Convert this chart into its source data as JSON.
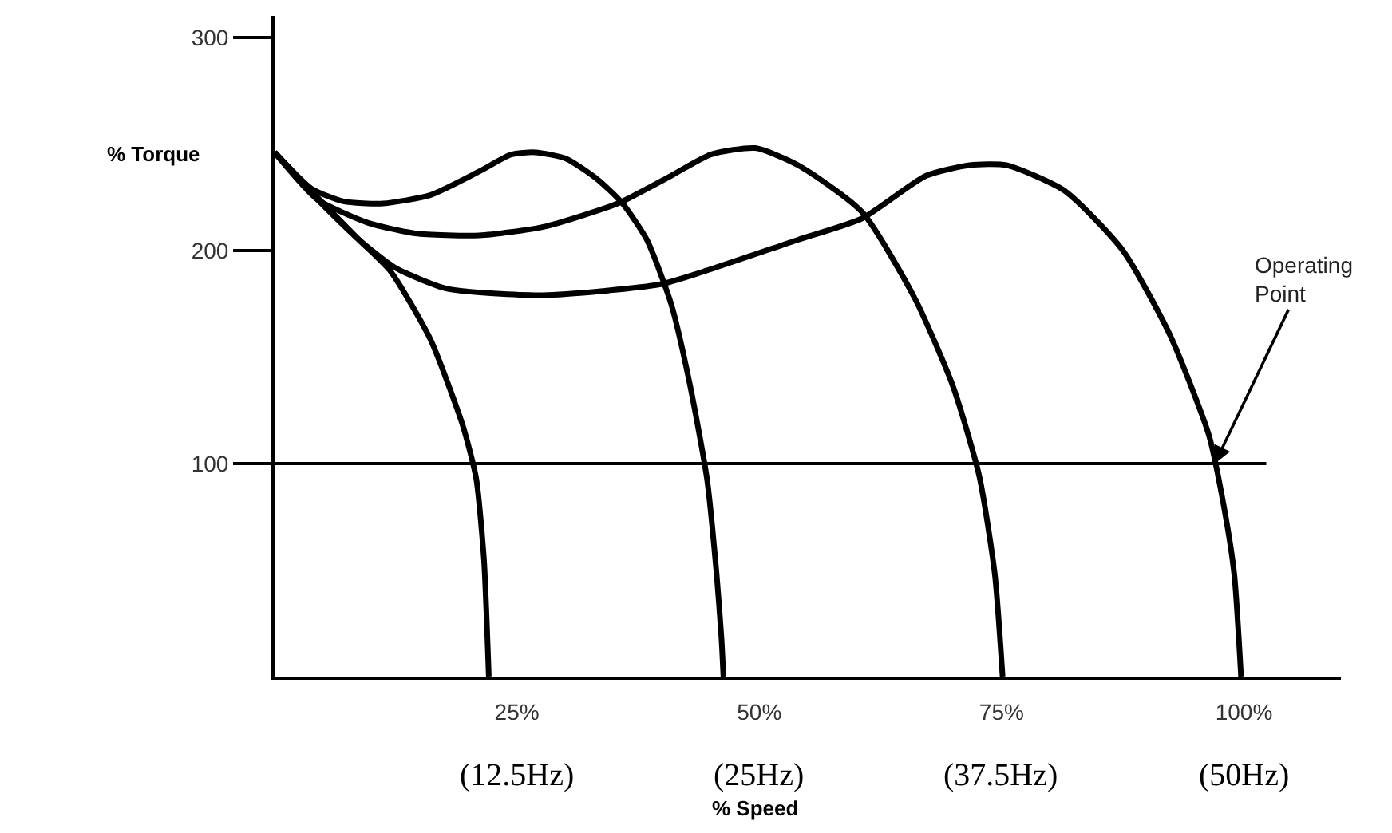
{
  "chart_data": {
    "type": "line",
    "xlabel": "% Speed",
    "ylabel": "% Torque",
    "xlim": [
      0,
      110
    ],
    "ylim": [
      0,
      310
    ],
    "xticks": [
      {
        "value": 25,
        "label": "25%"
      },
      {
        "value": 50,
        "label": "50%"
      },
      {
        "value": 75,
        "label": "75%"
      },
      {
        "value": 100,
        "label": "100%"
      }
    ],
    "yticks": [
      100,
      200,
      300
    ],
    "grid": false,
    "marker": "none",
    "line_style": "solid",
    "series": [
      {
        "color": "#000000",
        "x": [
          0,
          4.6,
          8.7,
          12.0,
          16.1,
          19.4,
          20.8,
          21.6,
          21.9,
          22.1
        ],
        "values": [
          246,
          224,
          205,
          190,
          158,
          118,
          93,
          55,
          25,
          0
        ]
      },
      {
        "color": "#000000",
        "x": [
          0,
          3.8,
          7.1,
          11.2,
          16.1,
          21.1,
          24.4,
          26.9,
          30.1,
          33.4,
          35.9,
          38.4,
          40.9,
          42.8,
          44.6,
          45.6,
          46.1,
          46.3
        ],
        "values": [
          246,
          229,
          223,
          222,
          226,
          237,
          245,
          246,
          243,
          233,
          222,
          205,
          175,
          138,
          93,
          48,
          18,
          0
        ]
      },
      {
        "color": "#000000",
        "x": [
          0,
          4.4,
          9.6,
          14.5,
          21.1,
          27.7,
          35.4,
          40.9,
          45.0,
          49.6,
          54.0,
          60.6,
          66.1,
          70.0,
          72.7,
          74.3,
          75.1
        ],
        "values": [
          246,
          224,
          213,
          208,
          207,
          211,
          222,
          235,
          245,
          248,
          240,
          218,
          177,
          136,
          94,
          48,
          0
        ]
      },
      {
        "color": "#000000",
        "x": [
          0,
          4.4,
          8.7,
          12.4,
          17.8,
          27.7,
          39.7,
          44.2,
          54.0,
          60.6,
          67.2,
          71.7,
          75.5,
          81.5,
          87.5,
          92.4,
          96.4,
          98.0,
          99.0,
          99.7
        ],
        "values": [
          246,
          224,
          205,
          192,
          182,
          179,
          184,
          190,
          205,
          215,
          235,
          240,
          240,
          228,
          200,
          160,
          113,
          78,
          48,
          0
        ]
      }
    ],
    "ref_lines": [
      {
        "axis": "y",
        "value": 100,
        "color": "#000000"
      }
    ],
    "annotations": [
      {
        "text": "Operating\nPoint",
        "x": 97,
        "y": 100
      },
      "(12.5Hz)",
      "(25Hz)",
      "(37.5Hz)",
      "(50Hz)"
    ]
  }
}
